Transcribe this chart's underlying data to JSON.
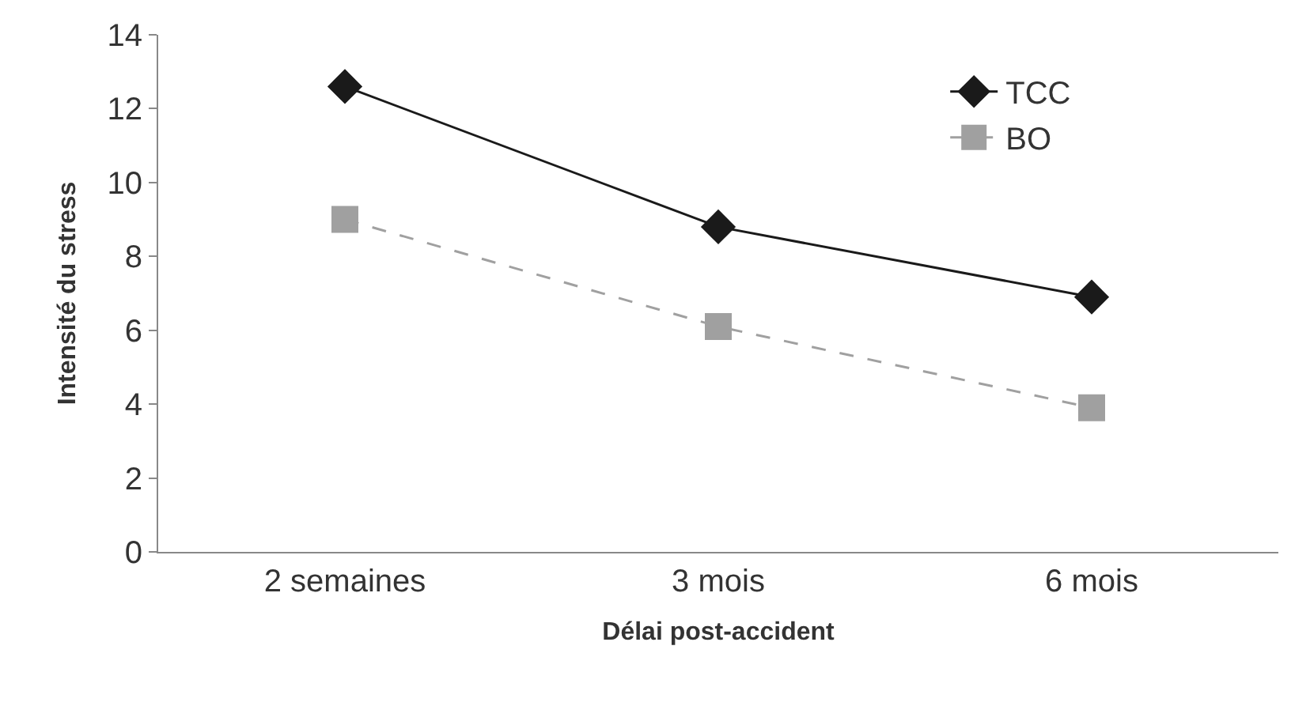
{
  "chart_data": {
    "type": "line",
    "xlabel": "Délai post-accident",
    "ylabel": "Intensité du stress",
    "categories": [
      "2 semaines",
      "3 mois",
      "6 mois"
    ],
    "series": [
      {
        "name": "TCC",
        "color": "#1a1a1a",
        "values": [
          12.6,
          8.8,
          6.9
        ],
        "marker": "diamond",
        "line_style": "solid"
      },
      {
        "name": "BO",
        "color": "#a0a0a0",
        "values": [
          9.0,
          6.1,
          3.9
        ],
        "marker": "square",
        "line_style": "dashed"
      }
    ],
    "ylim": [
      0,
      14
    ],
    "yticks": [
      0,
      2,
      4,
      6,
      8,
      10,
      12,
      14
    ],
    "legend": "top right"
  }
}
